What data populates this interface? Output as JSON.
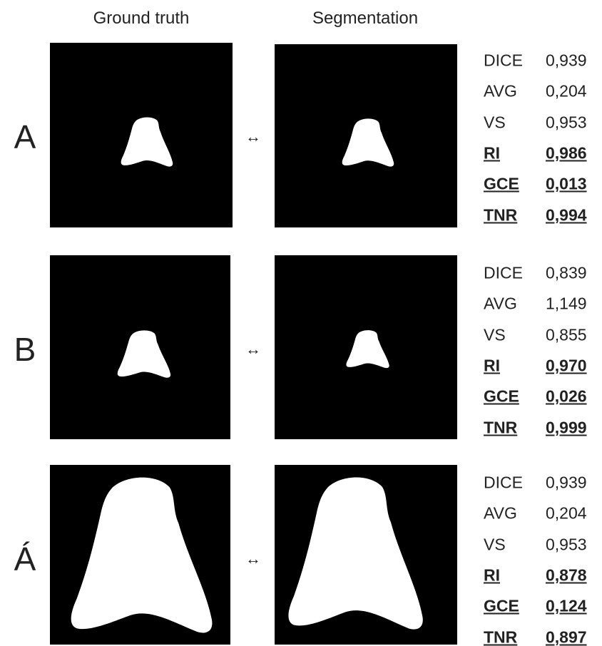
{
  "header": {
    "columns": [
      "Ground truth",
      "Segmentation"
    ]
  },
  "rows": [
    {
      "label": "A",
      "arrow": "↔",
      "metrics": [
        {
          "name": "DICE",
          "value": "0,939",
          "bold_underline": false
        },
        {
          "name": "AVG",
          "value": "0,204",
          "bold_underline": false
        },
        {
          "name": "VS",
          "value": "0,953",
          "bold_underline": false
        },
        {
          "name": "RI",
          "value": "0,986",
          "bold_underline": true
        },
        {
          "name": "GCE",
          "value": "0,013",
          "bold_underline": true
        },
        {
          "name": "TNR",
          "value": "0,994",
          "bold_underline": true
        }
      ]
    },
    {
      "label": "B",
      "arrow": "↔",
      "metrics": [
        {
          "name": "DICE",
          "value": "0,839",
          "bold_underline": false
        },
        {
          "name": "AVG",
          "value": "1,149",
          "bold_underline": false
        },
        {
          "name": "VS",
          "value": "0,855",
          "bold_underline": false
        },
        {
          "name": "RI",
          "value": "0,970",
          "bold_underline": true
        },
        {
          "name": "GCE",
          "value": "0,026",
          "bold_underline": true
        },
        {
          "name": "TNR",
          "value": "0,999",
          "bold_underline": true
        }
      ]
    },
    {
      "label": "Á",
      "arrow": "↔",
      "metrics": [
        {
          "name": "DICE",
          "value": "0,939",
          "bold_underline": false
        },
        {
          "name": "AVG",
          "value": "0,204",
          "bold_underline": false
        },
        {
          "name": "VS",
          "value": "0,953",
          "bold_underline": false
        },
        {
          "name": "RI",
          "value": "0,878",
          "bold_underline": true
        },
        {
          "name": "GCE",
          "value": "0,124",
          "bold_underline": true
        },
        {
          "name": "TNR",
          "value": "0,897",
          "bold_underline": true
        }
      ]
    }
  ]
}
